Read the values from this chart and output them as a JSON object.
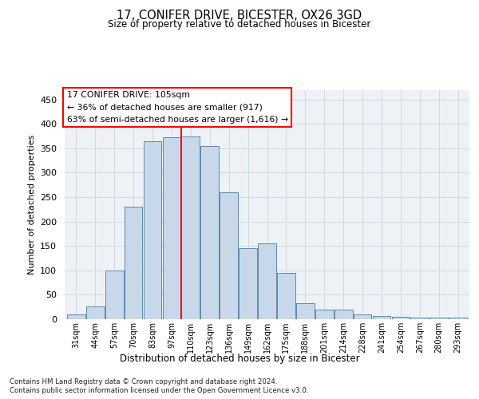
{
  "title_line1": "17, CONIFER DRIVE, BICESTER, OX26 3GD",
  "title_line2": "Size of property relative to detached houses in Bicester",
  "xlabel": "Distribution of detached houses by size in Bicester",
  "ylabel": "Number of detached properties",
  "footer_line1": "Contains HM Land Registry data © Crown copyright and database right 2024.",
  "footer_line2": "Contains public sector information licensed under the Open Government Licence v3.0.",
  "annotation_line1": "17 CONIFER DRIVE: 105sqm",
  "annotation_line2": "← 36% of detached houses are smaller (917)",
  "annotation_line3": "63% of semi-detached houses are larger (1,616) →",
  "bar_labels": [
    "31sqm",
    "44sqm",
    "57sqm",
    "70sqm",
    "83sqm",
    "97sqm",
    "110sqm",
    "123sqm",
    "136sqm",
    "149sqm",
    "162sqm",
    "175sqm",
    "188sqm",
    "201sqm",
    "214sqm",
    "228sqm",
    "241sqm",
    "254sqm",
    "267sqm",
    "280sqm",
    "293sqm"
  ],
  "bar_values": [
    10,
    26,
    100,
    230,
    365,
    372,
    374,
    355,
    260,
    146,
    155,
    95,
    33,
    20,
    20,
    10,
    6,
    5,
    4,
    3,
    3
  ],
  "bar_color": "#c8d8e8",
  "bar_edge_color": "#5a8ab0",
  "grid_color": "#d0d8e0",
  "vline_x": 5.5,
  "vline_color": "red",
  "ylim": [
    0,
    470
  ],
  "yticks": [
    0,
    50,
    100,
    150,
    200,
    250,
    300,
    350,
    400,
    450
  ],
  "bg_color": "#eef2f7"
}
